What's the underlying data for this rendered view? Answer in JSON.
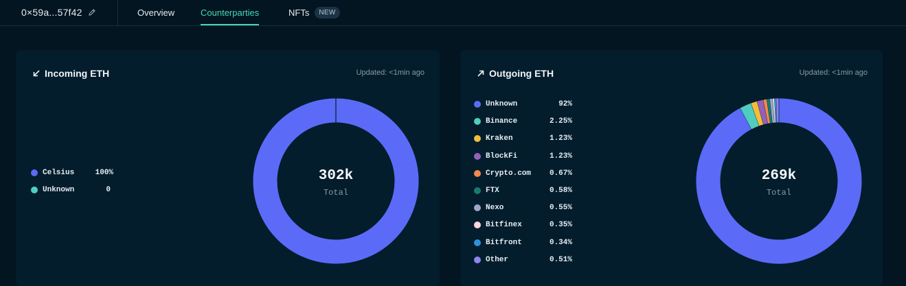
{
  "header": {
    "address": "0×59a...57f42",
    "tabs": [
      {
        "label": "Overview"
      },
      {
        "label": "Counterparties"
      },
      {
        "label": "NFTs",
        "badge": "NEW"
      }
    ]
  },
  "incoming": {
    "title": "Incoming ETH",
    "updated": "Updated: <1min ago",
    "total": "302k",
    "total_label": "Total",
    "legend": [
      {
        "name": "Celsius",
        "value": "100%",
        "color": "#5b6bf7"
      },
      {
        "name": "Unknown",
        "value": "0",
        "color": "#4fcdc1"
      }
    ]
  },
  "outgoing": {
    "title": "Outgoing ETH",
    "updated": "Updated: <1min ago",
    "total": "269k",
    "total_label": "Total",
    "legend": [
      {
        "name": "Unknown",
        "value": "92%",
        "color": "#5b6bf7"
      },
      {
        "name": "Binance",
        "value": "2.25%",
        "color": "#4fcdc1"
      },
      {
        "name": "Kraken",
        "value": "1.23%",
        "color": "#f2bd3a"
      },
      {
        "name": "BlockFi",
        "value": "1.23%",
        "color": "#9560b8"
      },
      {
        "name": "Crypto.com",
        "value": "0.67%",
        "color": "#f08a4b"
      },
      {
        "name": "FTX",
        "value": "0.58%",
        "color": "#167a73"
      },
      {
        "name": "Nexo",
        "value": "0.55%",
        "color": "#9aa7c7"
      },
      {
        "name": "Bitfinex",
        "value": "0.35%",
        "color": "#f7d7df"
      },
      {
        "name": "Bitfront",
        "value": "0.34%",
        "color": "#2e8fe0"
      },
      {
        "name": "Other",
        "value": "0.51%",
        "color": "#8f84f0"
      }
    ]
  }
}
